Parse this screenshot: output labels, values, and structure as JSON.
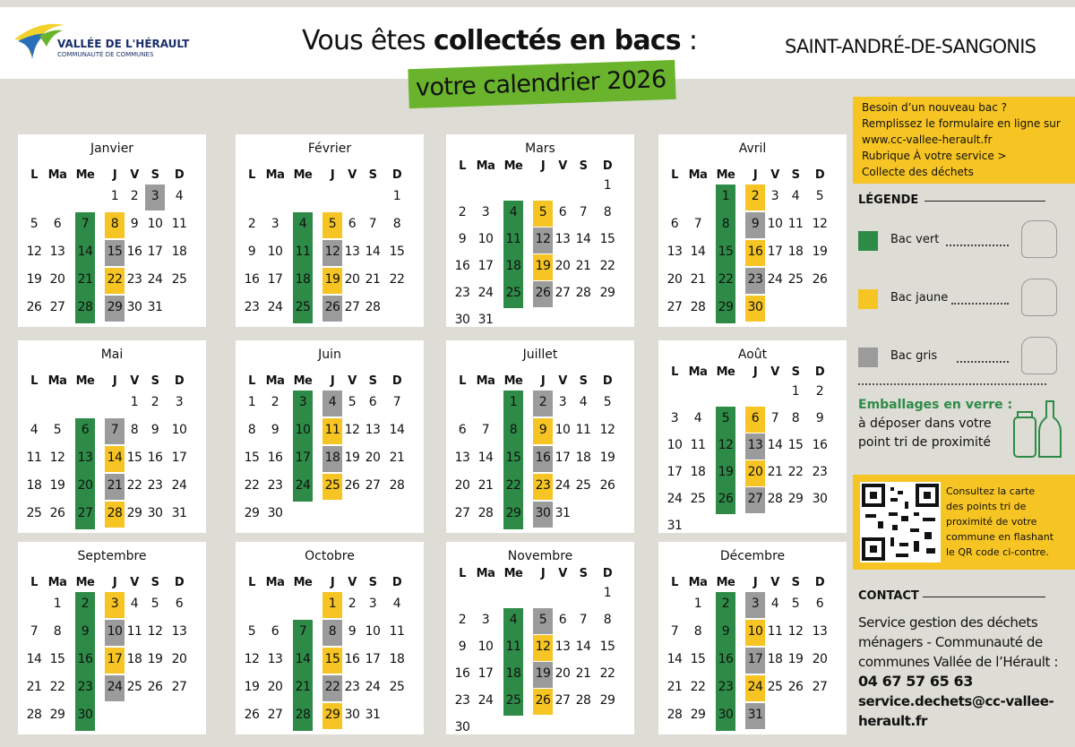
{
  "header": {
    "logo_name": "VALLÉE DE L'HÉRAULT",
    "logo_sub": "COMMUNAUTÉ DE COMMUNES",
    "title": [
      "Vous êtes",
      "collectés en bacs",
      ":"
    ],
    "subtitle": "votre calendrier 2026",
    "town": "SAINT-ANDRÉ-DE-SANGONIS"
  },
  "weekdays": [
    "L",
    "Ma",
    "Me",
    "J",
    "V",
    "S",
    "D"
  ],
  "bins": [
    {
      "label": "Bac vert",
      "color": "#2e8b47"
    },
    {
      "label": "Bac jaune",
      "color": "#f6c423"
    },
    {
      "label": "Bac gris",
      "color": "#9b9b9b"
    }
  ],
  "months": [
    {
      "name": "Janvier",
      "days": [
        null,
        null,
        null,
        1,
        2,
        3,
        4,
        5,
        6,
        7,
        8,
        9,
        10,
        11,
        12,
        13,
        14,
        15,
        16,
        17,
        18,
        19,
        20,
        21,
        22,
        23,
        24,
        25,
        26,
        27,
        28,
        29,
        30,
        31
      ],
      "collect": [
        [
          7,
          14,
          21,
          28
        ],
        [
          8,
          22
        ],
        [
          3,
          15,
          29
        ]
      ]
    },
    {
      "name": "Février",
      "days": [
        null,
        null,
        null,
        null,
        null,
        null,
        1,
        2,
        3,
        4,
        5,
        6,
        7,
        8,
        9,
        10,
        11,
        12,
        13,
        14,
        15,
        16,
        17,
        18,
        19,
        20,
        21,
        22,
        23,
        24,
        25,
        26,
        27,
        28
      ],
      "collect": [
        [
          4,
          11,
          18,
          25
        ],
        [
          5,
          19
        ],
        [
          12,
          26
        ]
      ]
    },
    {
      "name": "Mars",
      "days": [
        null,
        null,
        null,
        null,
        null,
        null,
        1,
        2,
        3,
        4,
        5,
        6,
        7,
        8,
        9,
        10,
        11,
        12,
        13,
        14,
        15,
        16,
        17,
        18,
        19,
        20,
        21,
        22,
        23,
        24,
        25,
        26,
        27,
        28,
        29,
        30,
        31
      ],
      "collect": [
        [
          4,
          11,
          18,
          25
        ],
        [
          5,
          19
        ],
        [
          12,
          26
        ]
      ]
    },
    {
      "name": "Avril",
      "days": [
        null,
        null,
        1,
        2,
        3,
        4,
        5,
        6,
        7,
        8,
        9,
        10,
        11,
        12,
        13,
        14,
        15,
        16,
        17,
        18,
        19,
        20,
        21,
        22,
        23,
        24,
        25,
        26,
        27,
        28,
        29,
        30
      ],
      "collect": [
        [
          1,
          8,
          15,
          22,
          29
        ],
        [
          2,
          16,
          30
        ],
        [
          9,
          23
        ]
      ]
    },
    {
      "name": "Mai",
      "days": [
        null,
        null,
        null,
        null,
        1,
        2,
        3,
        4,
        5,
        6,
        7,
        8,
        9,
        10,
        11,
        12,
        13,
        14,
        15,
        16,
        17,
        18,
        19,
        20,
        21,
        22,
        23,
        24,
        25,
        26,
        27,
        28,
        29,
        30,
        31
      ],
      "collect": [
        [
          6,
          13,
          20,
          27
        ],
        [
          14,
          28
        ],
        [
          7,
          21
        ]
      ]
    },
    {
      "name": "Juin",
      "days": [
        1,
        2,
        3,
        4,
        5,
        6,
        7,
        8,
        9,
        10,
        11,
        12,
        13,
        14,
        15,
        16,
        17,
        18,
        19,
        20,
        21,
        22,
        23,
        24,
        25,
        26,
        27,
        28,
        29,
        30
      ],
      "collect": [
        [
          3,
          10,
          17,
          24
        ],
        [
          11,
          25
        ],
        [
          4,
          18
        ]
      ]
    },
    {
      "name": "Juillet",
      "days": [
        null,
        null,
        1,
        2,
        3,
        4,
        5,
        6,
        7,
        8,
        9,
        10,
        11,
        12,
        13,
        14,
        15,
        16,
        17,
        18,
        19,
        20,
        21,
        22,
        23,
        24,
        25,
        26,
        27,
        28,
        29,
        30,
        31
      ],
      "collect": [
        [
          1,
          8,
          15,
          22,
          29
        ],
        [
          9,
          23
        ],
        [
          2,
          16,
          30
        ]
      ]
    },
    {
      "name": "Août",
      "days": [
        null,
        null,
        null,
        null,
        null,
        1,
        2,
        3,
        4,
        5,
        6,
        7,
        8,
        9,
        10,
        11,
        12,
        13,
        14,
        15,
        16,
        17,
        18,
        19,
        20,
        21,
        22,
        23,
        24,
        25,
        26,
        27,
        28,
        29,
        30,
        31
      ],
      "collect": [
        [
          5,
          12,
          19,
          26
        ],
        [
          6,
          20
        ],
        [
          13,
          27
        ]
      ]
    },
    {
      "name": "Septembre",
      "days": [
        null,
        1,
        2,
        3,
        4,
        5,
        6,
        7,
        8,
        9,
        10,
        11,
        12,
        13,
        14,
        15,
        16,
        17,
        18,
        19,
        20,
        21,
        22,
        23,
        24,
        25,
        26,
        27,
        28,
        29,
        30
      ],
      "collect": [
        [
          2,
          9,
          16,
          23,
          30
        ],
        [
          3,
          17
        ],
        [
          10,
          24
        ]
      ]
    },
    {
      "name": "Octobre",
      "days": [
        null,
        null,
        null,
        1,
        2,
        3,
        4,
        5,
        6,
        7,
        8,
        9,
        10,
        11,
        12,
        13,
        14,
        15,
        16,
        17,
        18,
        19,
        20,
        21,
        22,
        23,
        24,
        25,
        26,
        27,
        28,
        29,
        30,
        31
      ],
      "collect": [
        [
          7,
          14,
          21,
          28
        ],
        [
          1,
          15,
          29
        ],
        [
          8,
          22
        ]
      ]
    },
    {
      "name": "Novembre",
      "days": [
        null,
        null,
        null,
        null,
        null,
        null,
        1,
        2,
        3,
        4,
        5,
        6,
        7,
        8,
        9,
        10,
        11,
        12,
        13,
        14,
        15,
        16,
        17,
        18,
        19,
        20,
        21,
        22,
        23,
        24,
        25,
        26,
        27,
        28,
        29,
        30
      ],
      "collect": [
        [
          4,
          11,
          18,
          25
        ],
        [
          12,
          26
        ],
        [
          5,
          19
        ]
      ]
    },
    {
      "name": "Décembre",
      "days": [
        null,
        1,
        2,
        3,
        4,
        5,
        6,
        7,
        8,
        9,
        10,
        11,
        12,
        13,
        14,
        15,
        16,
        17,
        18,
        19,
        20,
        21,
        22,
        23,
        24,
        25,
        26,
        27,
        28,
        29,
        30,
        31
      ],
      "collect": [
        [
          2,
          9,
          16,
          23,
          30
        ],
        [
          10,
          24
        ],
        [
          3,
          17,
          31
        ]
      ]
    }
  ],
  "info": [
    "Besoin d’un nouveau bac ?",
    "Remplissez le formulaire en ligne sur",
    "www.cc-vallee-herault.fr",
    "Rubrique À votre service >",
    "Collecte des déchets"
  ],
  "legend_title": "LÉGENDE",
  "glass": {
    "title": "Emballages en verre :",
    "lines": [
      "à déposer dans votre",
      "point tri de proximité"
    ]
  },
  "qr_text": [
    "Consultez la carte",
    "des points tri de",
    "proximité de votre",
    "commune en flashant",
    "le QR code ci-contre."
  ],
  "contact": {
    "title": "CONTACT",
    "lines": [
      "Service gestion des déchets",
      "ménagers - Communauté de",
      "communes Vallée de l’Hérault :"
    ],
    "phone": "04 67 57 65 63",
    "email": [
      "service.dechets@cc-vallee-",
      "herault.fr"
    ]
  }
}
